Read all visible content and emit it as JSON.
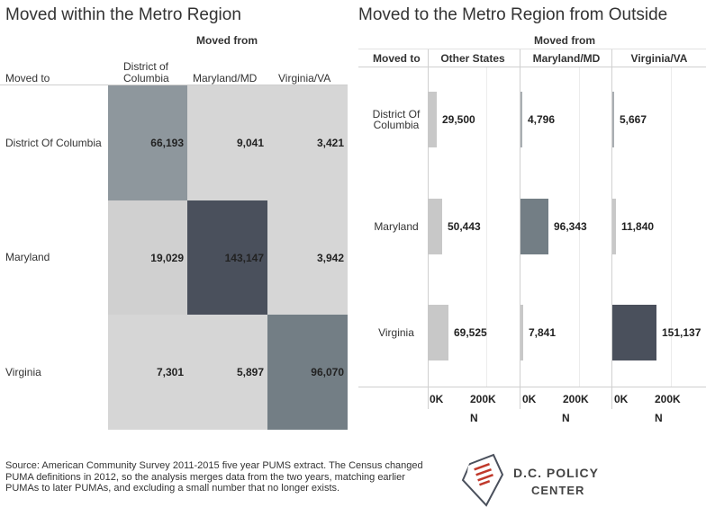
{
  "left": {
    "title": "Moved within the Metro Region",
    "moved_from_label": "Moved from",
    "moved_to_label": "Moved to",
    "columns": [
      "District of Columbia",
      "Maryland/MD",
      "Virginia/VA"
    ],
    "column_lines": [
      [
        "District of",
        "Columbia"
      ],
      [
        "Maryland/MD"
      ],
      [
        "Virginia/VA"
      ]
    ],
    "rows": [
      "District Of Columbia",
      "Maryland",
      "Virginia"
    ]
  },
  "right": {
    "title": "Moved to the Metro Region from Outside",
    "moved_from_label": "Moved from",
    "moved_to_label": "Moved to",
    "columns": [
      "Other States",
      "Maryland/MD",
      "Virginia/VA"
    ],
    "row_lines": [
      [
        "District Of",
        "Columbia"
      ],
      [
        "Maryland"
      ],
      [
        "Virginia"
      ]
    ],
    "ticks": [
      "0K",
      "200K"
    ],
    "axis_title": "N"
  },
  "colors": {
    "light_gray": "#d6d6d6",
    "lighter_gray": "#d0d0d0",
    "mid_gray": "#8e979d",
    "slate": "#737e85",
    "dark_slate": "#4a505c",
    "bar_light": "#c8c8c8",
    "bar_mid": "#a9aeb2",
    "bar_dark": "#4a505c"
  },
  "chart_data": [
    {
      "type": "heatmap",
      "title": "Moved within the Metro Region",
      "x_title": "Moved from",
      "y_title": "Moved to",
      "x": [
        "District of Columbia",
        "Maryland/MD",
        "Virginia/VA"
      ],
      "y": [
        "District Of Columbia",
        "Maryland",
        "Virginia"
      ],
      "values": [
        [
          66193,
          9041,
          3421
        ],
        [
          19029,
          143147,
          3942
        ],
        [
          7301,
          5897,
          96070
        ]
      ],
      "labels": [
        [
          "66,193",
          "9,041",
          "3,421"
        ],
        [
          "19,029",
          "143,147",
          "3,942"
        ],
        [
          "7,301",
          "5,897",
          "96,070"
        ]
      ]
    },
    {
      "type": "bar",
      "orientation": "horizontal",
      "title": "Moved to the Metro Region from Outside",
      "x_title": "N",
      "y_title": "Moved to",
      "facet_title": "Moved from",
      "categories": [
        "District Of Columbia",
        "Maryland",
        "Virginia"
      ],
      "xlim": [
        0,
        300000
      ],
      "series": [
        {
          "name": "Other States",
          "values": [
            29500,
            50443,
            69525
          ],
          "labels": [
            "29,500",
            "50,443",
            "69,525"
          ]
        },
        {
          "name": "Maryland/MD",
          "values": [
            4796,
            96343,
            7841
          ],
          "labels": [
            "4,796",
            "96,343",
            "7,841"
          ]
        },
        {
          "name": "Virginia/VA",
          "values": [
            5667,
            11840,
            151137
          ],
          "labels": [
            "5,667",
            "11,840",
            "151,137"
          ]
        }
      ]
    }
  ],
  "footer": {
    "source": "Source: American Community Survey 2011-2015 five year PUMS extract. The Census changed PUMA definitions in 2012, so the analysis merges data from the two years, matching earlier PUMAs to later PUMAs, and excluding a small number that no longer exists.",
    "logo_line1": "D.C. POLICY",
    "logo_line2": "CENTER"
  }
}
